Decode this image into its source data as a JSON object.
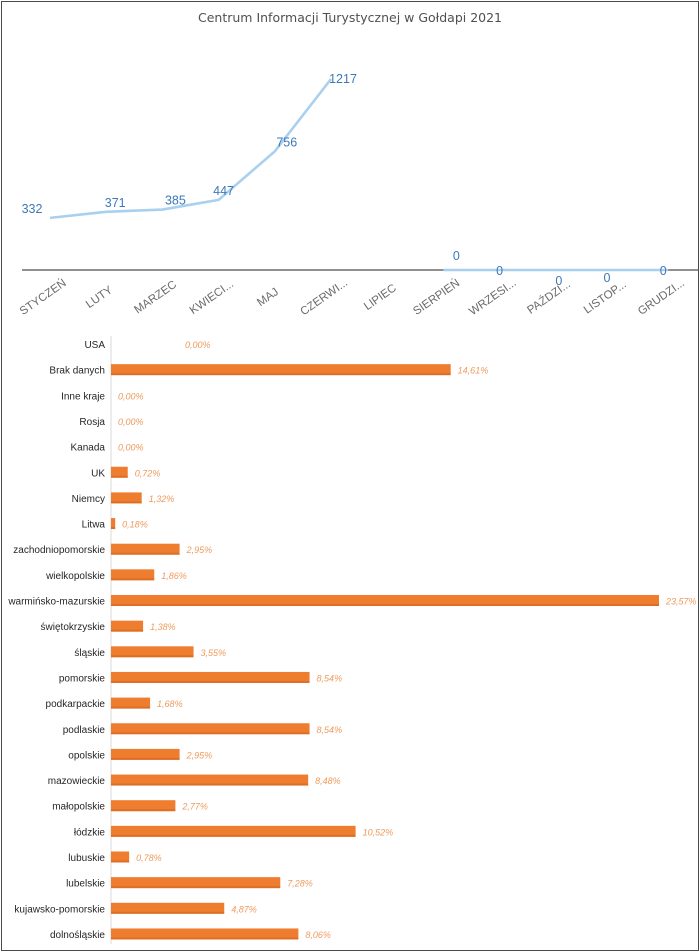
{
  "chart_data": [
    {
      "type": "line",
      "title": "Centrum Informacji Turystycznej w Gołdapi 2021",
      "categories": [
        "STYCZEŃ",
        "LUTY",
        "MARZEC",
        "KWIECI...",
        "MAJ",
        "CZERWI...",
        "LIPIEC",
        "SIERPIEŃ",
        "WRZESI...",
        "PAŹDZI...",
        "LISTOP...",
        "GRUDZI..."
      ],
      "series": [
        {
          "values": [
            332,
            371,
            385,
            447,
            756,
            1217,
            null,
            null,
            null,
            null,
            null,
            null
          ]
        },
        {
          "values": [
            null,
            null,
            null,
            null,
            null,
            null,
            null,
            0,
            0,
            0,
            0,
            0
          ]
        }
      ],
      "data_labels": [
        "332",
        "371",
        "385",
        "447",
        "756",
        "1217",
        "",
        "0",
        "0",
        "0",
        "0",
        "0"
      ],
      "ylim": [
        -220,
        1300
      ],
      "colors": {
        "line": "#a9d0ee",
        "label": "#3d79b8",
        "axis": "#4d4d4d",
        "tick": "#6a6a6a"
      }
    },
    {
      "type": "bar",
      "orientation": "horizontal",
      "categories": [
        "USA",
        "Brak danych",
        "Inne kraje",
        "Rosja",
        "Kanada",
        "UK",
        "Niemcy",
        "Litwa",
        "zachodniopomorskie",
        "wielkopolskie",
        "warmińsko-mazurskie",
        "świętokrzyskie",
        "śląskie",
        "pomorskie",
        "podkarpackie",
        "podlaskie",
        "opolskie",
        "mazowieckie",
        "małopolskie",
        "łódzkie",
        "lubuskie",
        "lubelskie",
        "kujawsko-pomorskie",
        "dolnośląskie"
      ],
      "values": [
        0.0,
        14.61,
        0.0,
        0.0,
        0.0,
        0.72,
        1.32,
        0.18,
        2.95,
        1.86,
        23.57,
        1.38,
        3.55,
        8.54,
        1.68,
        8.54,
        2.95,
        8.48,
        2.77,
        10.52,
        0.78,
        7.28,
        4.87,
        8.06
      ],
      "data_labels": [
        "0,00%",
        "14,61%",
        "0,00%",
        "0,00%",
        "0,00%",
        "0,72%",
        "1,32%",
        "0,18%",
        "2,95%",
        "1,86%",
        "23,57%",
        "1,38%",
        "3,55%",
        "8,54%",
        "1,68%",
        "8,54%",
        "2,95%",
        "8,48%",
        "2,77%",
        "10,52%",
        "0,78%",
        "7,28%",
        "4,87%",
        "8,06%"
      ],
      "colors": {
        "bar": "#ee7d2f",
        "bar_dark": "#c95d16",
        "label": "#ef9a5c",
        "category": "#262626",
        "axis": "#d9d9d9"
      }
    }
  ]
}
